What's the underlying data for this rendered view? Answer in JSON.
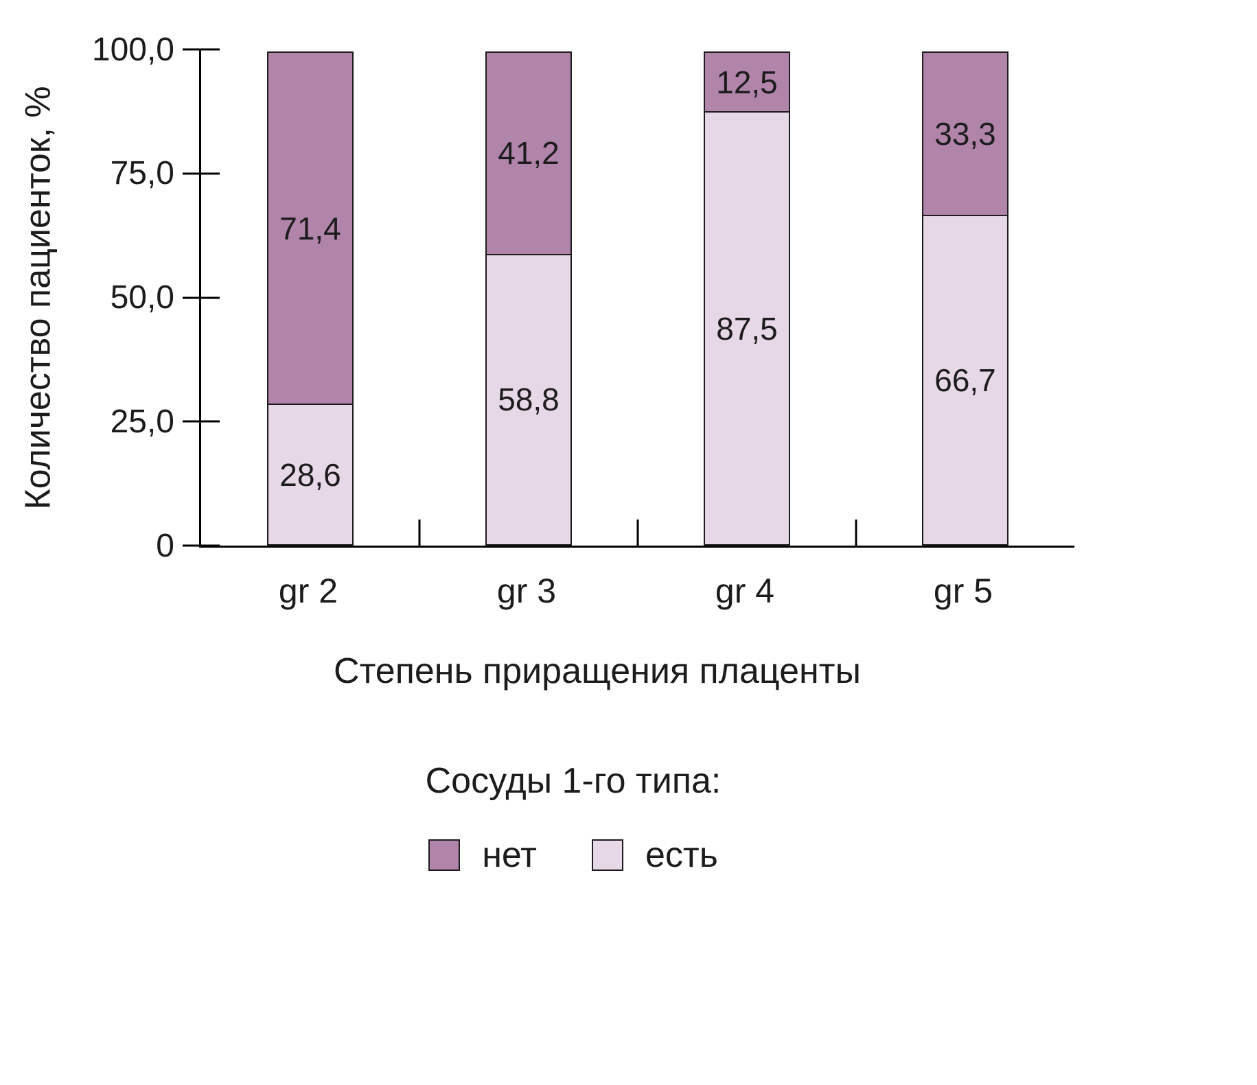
{
  "chart_data": {
    "type": "bar",
    "stacked": true,
    "percent": true,
    "categories": [
      "gr 2",
      "gr 3",
      "gr 4",
      "gr 5"
    ],
    "series": [
      {
        "name": "нет",
        "color": "#b184aa",
        "values": [
          71.4,
          41.2,
          12.5,
          33.3
        ],
        "labels": [
          "71,4",
          "41,2",
          "12,5",
          "33,3"
        ]
      },
      {
        "name": "есть",
        "color": "#e6d8e6",
        "values": [
          28.6,
          58.8,
          87.5,
          66.7
        ],
        "labels": [
          "28,6",
          "58,8",
          "87,5",
          "66,7"
        ]
      }
    ],
    "xlabel": "Степень приращения плаценты",
    "ylabel": "Количество пациенток, %",
    "ylim": [
      0,
      100
    ],
    "yticks": [
      {
        "label": "100,0",
        "value": 100
      },
      {
        "label": "75,0",
        "value": 75
      },
      {
        "label": "50,0",
        "value": 50
      },
      {
        "label": "25,0",
        "value": 25
      },
      {
        "label": "0",
        "value": 0
      }
    ],
    "xtick_boundaries_percent": [
      25,
      50,
      75
    ],
    "legend": {
      "title": "Сосуды 1-го типа:",
      "position": "bottom"
    },
    "grid": false,
    "colors": {
      "axis": "#000000",
      "text": "#1c1c1c",
      "background": "#ffffff"
    }
  }
}
